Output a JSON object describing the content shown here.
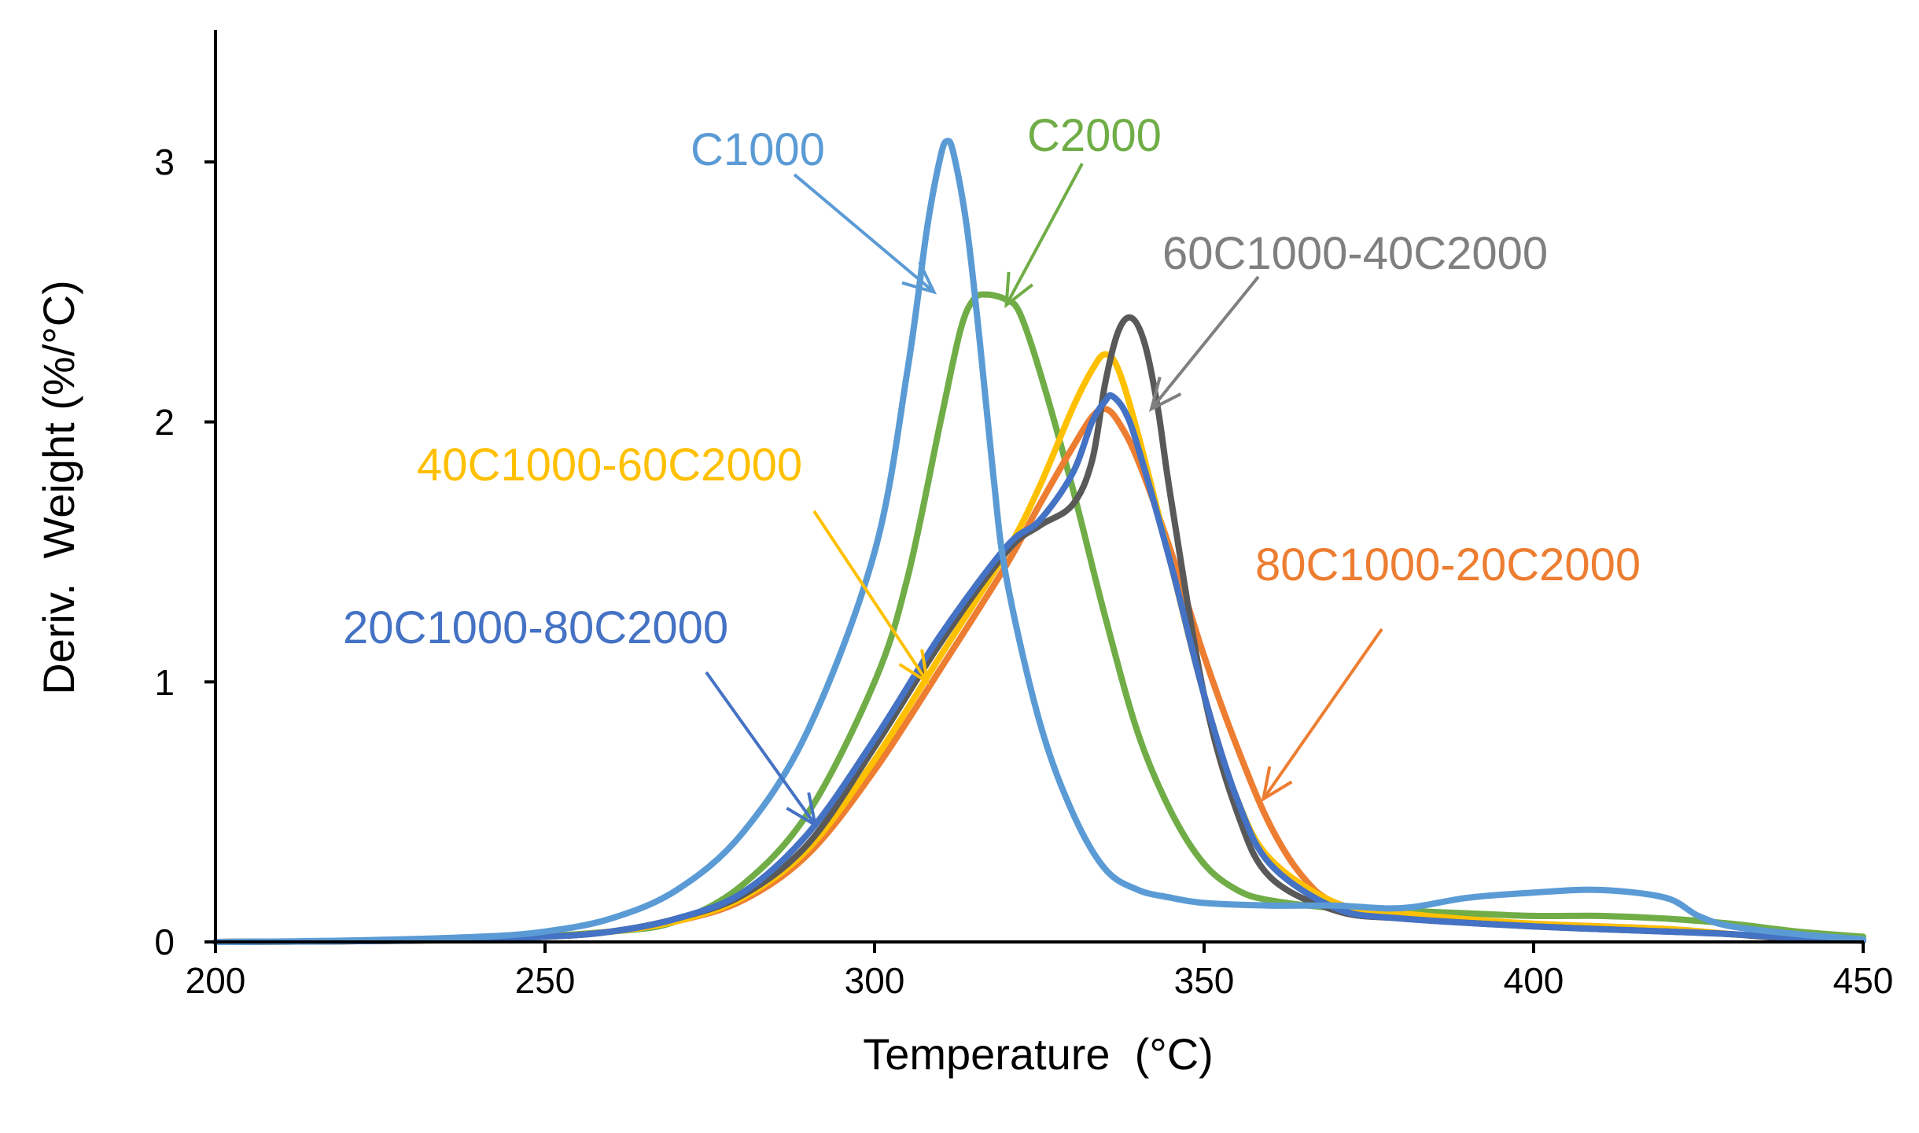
{
  "chart_data": {
    "type": "line",
    "title": "",
    "xlabel": "Temperature  (°C)",
    "ylabel": "Deriv.  Weight (%/°C)",
    "xlim": [
      200,
      450
    ],
    "ylim": [
      0,
      3.5
    ],
    "xticks": [
      200,
      250,
      300,
      350,
      400,
      450
    ],
    "xtick_labels": [
      "200",
      "250",
      "300",
      "350",
      "400",
      "450"
    ],
    "yticks": [
      0,
      1,
      2,
      3
    ],
    "ytick_labels": [
      "0",
      "1",
      "2",
      "3"
    ],
    "grid": false,
    "legend": "inline annotations with arrows",
    "series": [
      {
        "name": "C1000",
        "color": "#5B9BD5",
        "x": [
          200,
          220,
          240,
          250,
          260,
          270,
          280,
          290,
          300,
          305,
          308,
          310,
          311,
          312,
          314,
          316,
          318,
          320,
          325,
          330,
          335,
          340,
          345,
          350,
          360,
          370,
          380,
          390,
          400,
          410,
          420,
          425,
          430,
          440,
          450
        ],
        "y": [
          0,
          0.005,
          0.02,
          0.04,
          0.09,
          0.2,
          0.42,
          0.82,
          1.5,
          2.2,
          2.75,
          3.02,
          3.08,
          3.03,
          2.75,
          2.3,
          1.8,
          1.4,
          0.85,
          0.5,
          0.28,
          0.2,
          0.17,
          0.15,
          0.14,
          0.14,
          0.13,
          0.17,
          0.19,
          0.2,
          0.17,
          0.1,
          0.06,
          0.03,
          0.01
        ]
      },
      {
        "name": "C2000",
        "color": "#70AD47",
        "x": [
          200,
          220,
          240,
          260,
          270,
          280,
          290,
          300,
          305,
          310,
          313,
          315,
          317,
          320,
          322,
          325,
          330,
          335,
          340,
          345,
          350,
          355,
          360,
          370,
          380,
          390,
          400,
          410,
          420,
          430,
          440,
          450
        ],
        "y": [
          0,
          0.003,
          0.01,
          0.04,
          0.08,
          0.22,
          0.5,
          1.0,
          1.4,
          2.0,
          2.35,
          2.47,
          2.49,
          2.47,
          2.42,
          2.2,
          1.75,
          1.25,
          0.8,
          0.5,
          0.3,
          0.2,
          0.16,
          0.13,
          0.12,
          0.11,
          0.1,
          0.1,
          0.09,
          0.07,
          0.04,
          0.02
        ]
      },
      {
        "name": "60C1000-40C2000",
        "color": "#595959",
        "x": [
          200,
          230,
          250,
          260,
          270,
          280,
          290,
          300,
          310,
          320,
          325,
          330,
          333,
          335,
          337,
          339,
          341,
          343,
          345,
          350,
          355,
          360,
          370,
          380,
          400,
          420,
          430,
          440,
          450
        ],
        "y": [
          0,
          0.005,
          0.02,
          0.04,
          0.09,
          0.18,
          0.38,
          0.75,
          1.15,
          1.5,
          1.6,
          1.68,
          1.85,
          2.15,
          2.35,
          2.4,
          2.3,
          2.05,
          1.7,
          0.95,
          0.5,
          0.25,
          0.12,
          0.09,
          0.06,
          0.04,
          0.03,
          0.01,
          0.005
        ]
      },
      {
        "name": "40C1000-60C2000",
        "color": "#FFC000",
        "x": [
          200,
          230,
          250,
          260,
          270,
          280,
          290,
          300,
          310,
          320,
          325,
          330,
          333,
          335,
          337,
          340,
          345,
          350,
          355,
          360,
          370,
          380,
          400,
          420,
          430,
          440,
          450
        ],
        "y": [
          0,
          0.005,
          0.02,
          0.04,
          0.08,
          0.17,
          0.36,
          0.7,
          1.1,
          1.5,
          1.75,
          2.05,
          2.2,
          2.26,
          2.2,
          1.95,
          1.45,
          0.95,
          0.55,
          0.32,
          0.15,
          0.11,
          0.07,
          0.05,
          0.03,
          0.015,
          0.005
        ]
      },
      {
        "name": "80C1000-20C2000",
        "color": "#ED7D31",
        "x": [
          200,
          230,
          250,
          260,
          270,
          280,
          290,
          300,
          310,
          320,
          325,
          330,
          333,
          335,
          337,
          340,
          345,
          350,
          355,
          360,
          365,
          370,
          380,
          400,
          420,
          430,
          440,
          450
        ],
        "y": [
          0,
          0.005,
          0.02,
          0.04,
          0.08,
          0.16,
          0.34,
          0.66,
          1.05,
          1.45,
          1.68,
          1.9,
          2.02,
          2.05,
          2.0,
          1.85,
          1.5,
          1.1,
          0.75,
          0.45,
          0.25,
          0.15,
          0.1,
          0.07,
          0.05,
          0.03,
          0.015,
          0.005
        ]
      },
      {
        "name": "20C1000-80C2000",
        "color": "#4472C4",
        "x": [
          200,
          230,
          250,
          260,
          270,
          280,
          290,
          300,
          310,
          320,
          325,
          330,
          333,
          335,
          336,
          338,
          340,
          345,
          350,
          355,
          360,
          370,
          380,
          400,
          420,
          430,
          440,
          450
        ],
        "y": [
          0,
          0.005,
          0.02,
          0.04,
          0.09,
          0.19,
          0.42,
          0.78,
          1.18,
          1.52,
          1.62,
          1.8,
          2.0,
          2.08,
          2.1,
          2.04,
          1.9,
          1.45,
          0.95,
          0.55,
          0.3,
          0.13,
          0.09,
          0.06,
          0.04,
          0.03,
          0.015,
          0.005
        ]
      }
    ],
    "annotations": [
      {
        "text": "C1000",
        "color": "#5B9BD5",
        "arrow_to": [
          309,
          2.5
        ]
      },
      {
        "text": "C2000",
        "color": "#70AD47",
        "arrow_to": [
          320,
          2.45
        ]
      },
      {
        "text": "60C1000-40C2000",
        "color": "#7F7F7F",
        "arrow_to": [
          342,
          2.05
        ]
      },
      {
        "text": "40C1000-60C2000",
        "color": "#FFC000",
        "arrow_to": [
          308,
          1.0
        ]
      },
      {
        "text": "80C1000-20C2000",
        "color": "#ED7D31",
        "arrow_to": [
          359,
          0.55
        ]
      },
      {
        "text": "20C1000-80C2000",
        "color": "#4472C4",
        "arrow_to": [
          291,
          0.45
        ]
      }
    ]
  }
}
